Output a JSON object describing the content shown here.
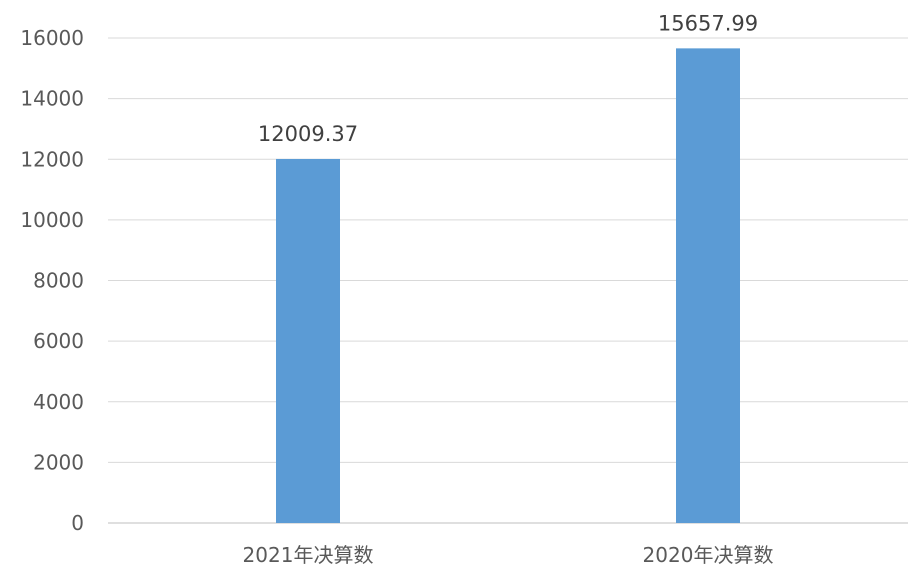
{
  "chart_data": {
    "type": "bar",
    "categories": [
      "2021年决算数",
      "2020年决算数"
    ],
    "values": [
      12009.37,
      15657.99
    ],
    "data_labels": [
      "12009.37",
      "15657.99"
    ],
    "title": "",
    "xlabel": "",
    "ylabel": "",
    "ylim": [
      0,
      16000
    ],
    "yticks": [
      0,
      2000,
      4000,
      6000,
      8000,
      10000,
      12000,
      14000,
      16000
    ],
    "grid": true,
    "legend": "none",
    "bar_color": "#5b9bd5"
  }
}
